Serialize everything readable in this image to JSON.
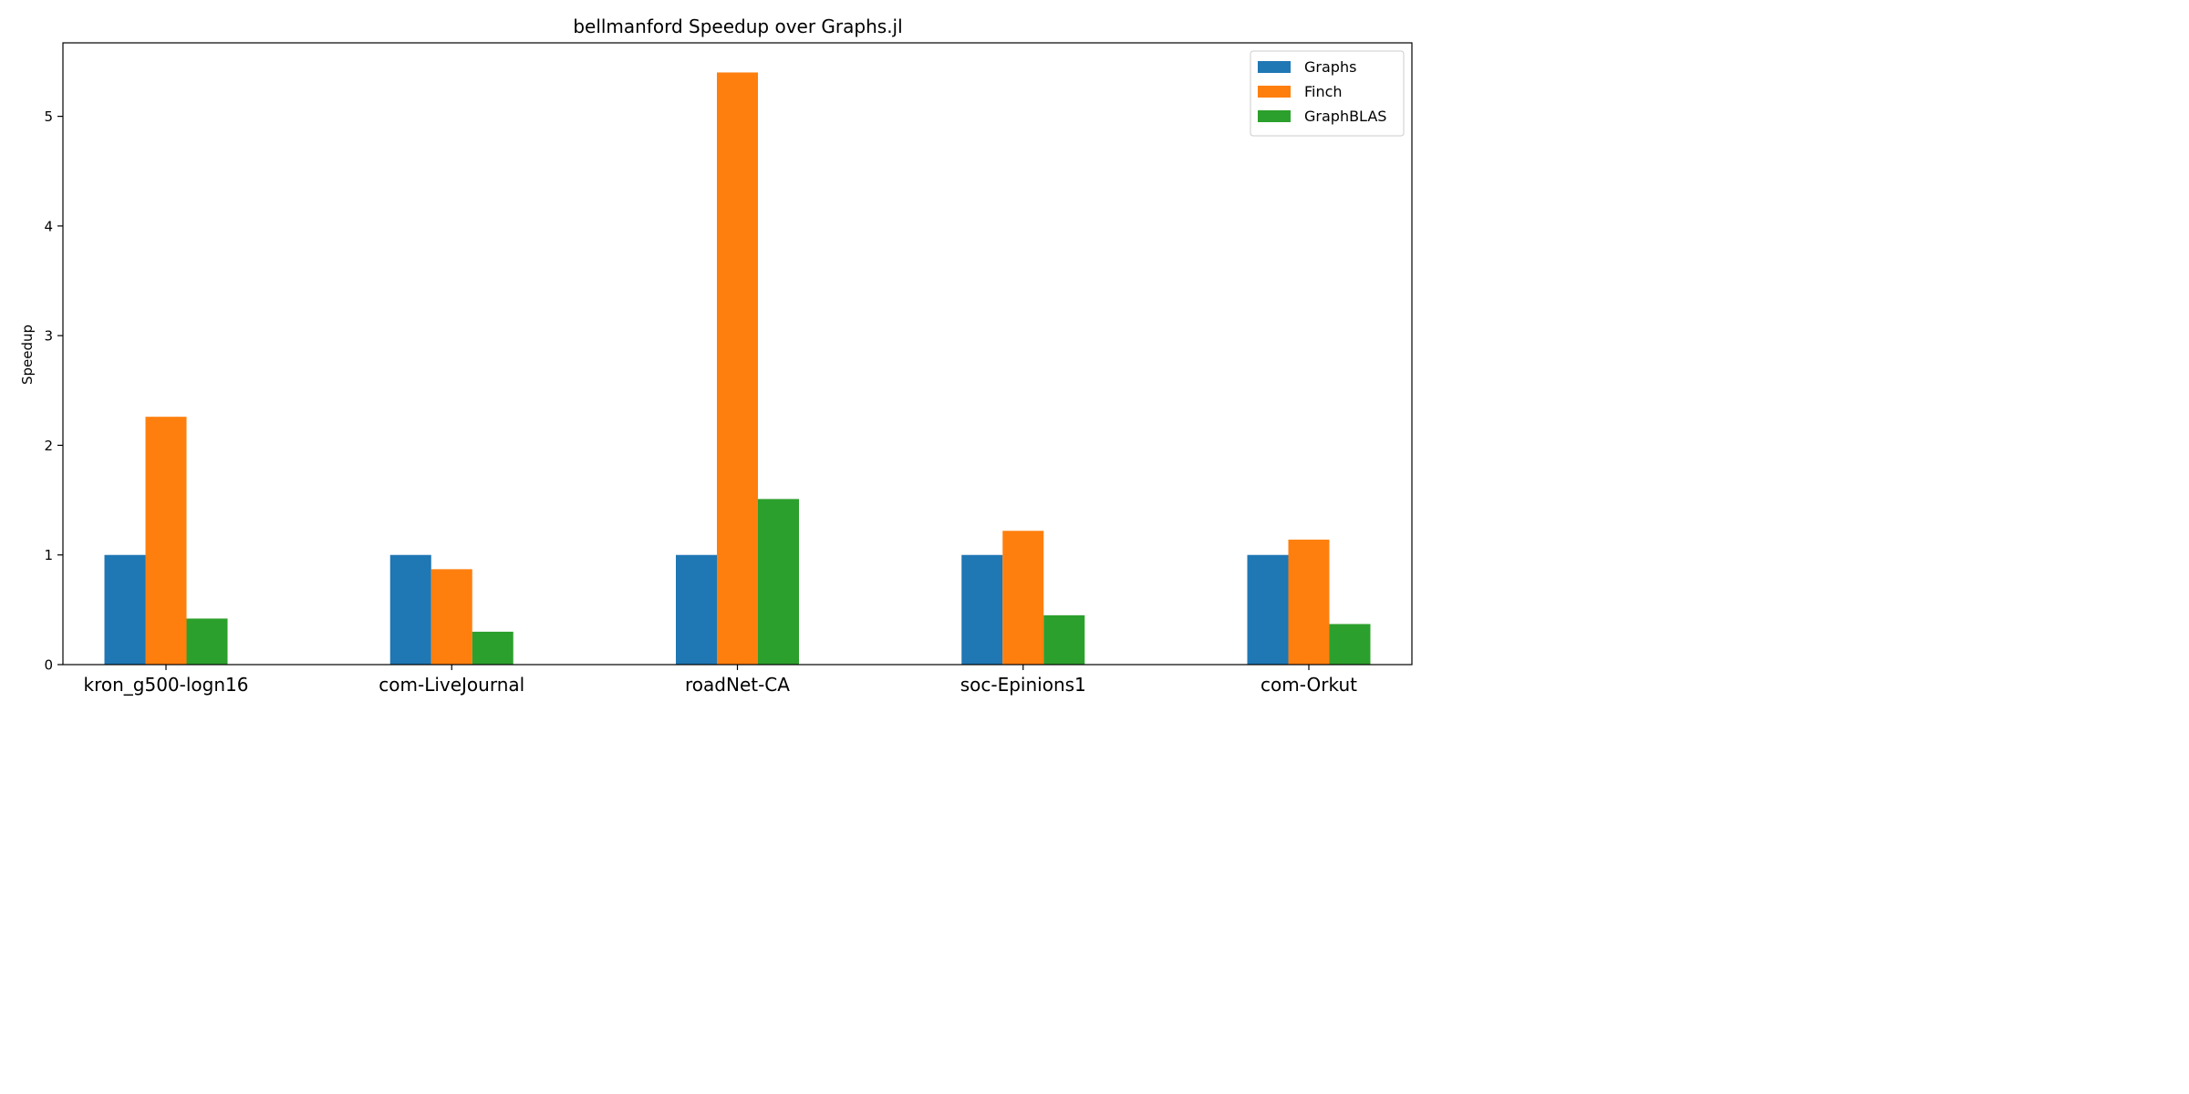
{
  "chart_data": {
    "type": "bar",
    "title": "bellmanford Speedup over Graphs.jl",
    "xlabel": "",
    "ylabel": "Speedup",
    "categories": [
      "kron_g500-logn16",
      "com-LiveJournal",
      "roadNet-CA",
      "soc-Epinions1",
      "com-Orkut"
    ],
    "series": [
      {
        "name": "Graphs",
        "color": "#1f77b4",
        "values": [
          1.0,
          1.0,
          1.0,
          1.0,
          1.0
        ]
      },
      {
        "name": "Finch",
        "color": "#ff7f0e",
        "values": [
          2.26,
          0.87,
          5.4,
          1.22,
          1.14
        ]
      },
      {
        "name": "GraphBLAS",
        "color": "#2ca02c",
        "values": [
          0.42,
          0.3,
          1.51,
          0.45,
          0.37
        ]
      }
    ],
    "yticks": [
      0,
      1,
      2,
      3,
      4,
      5
    ],
    "ylim": [
      0,
      5.67
    ],
    "grid": false,
    "legend_position": "top-right"
  }
}
